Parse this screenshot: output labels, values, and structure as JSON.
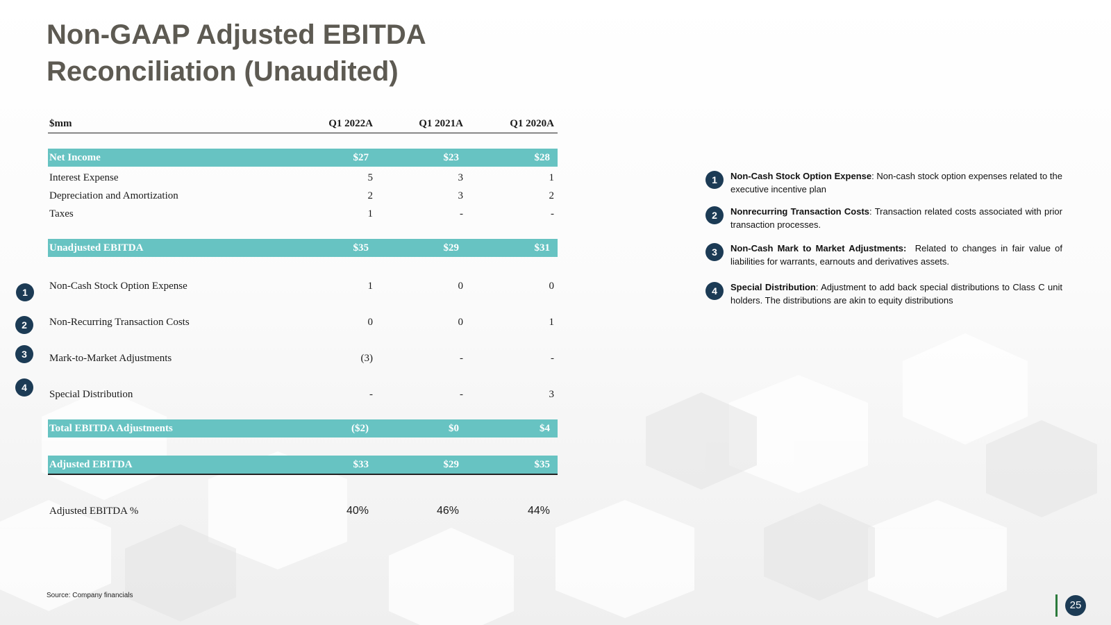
{
  "title": "Non-GAAP Adjusted EBITDA Reconciliation (Unaudited)",
  "table": {
    "header": {
      "label": "$mm",
      "cols": [
        "Q1 2022A",
        "Q1 2021A",
        "Q1 2020A"
      ]
    },
    "rows": [
      {
        "label": "Net Income",
        "v": [
          "$27",
          "$23",
          "$28"
        ]
      },
      {
        "label": "Interest Expense",
        "v": [
          "5",
          "3",
          "1"
        ]
      },
      {
        "label": "Depreciation and Amortization",
        "v": [
          "2",
          "3",
          "2"
        ]
      },
      {
        "label": "Taxes",
        "v": [
          "1",
          "-",
          "-"
        ]
      },
      {
        "label": "Unadjusted EBITDA",
        "v": [
          "$35",
          "$29",
          "$31"
        ]
      },
      {
        "label": "Non-Cash Stock Option Expense",
        "v": [
          "1",
          "0",
          "0"
        ]
      },
      {
        "label": "Non-Recurring Transaction Costs",
        "v": [
          "0",
          "0",
          "1"
        ]
      },
      {
        "label": "Mark-to-Market Adjustments",
        "v": [
          "(3)",
          "-",
          "-"
        ]
      },
      {
        "label": "Special Distribution",
        "v": [
          "-",
          "-",
          "3"
        ]
      },
      {
        "label": "Total EBITDA Adjustments",
        "v": [
          "($2)",
          "$0",
          "$4"
        ]
      },
      {
        "label": "Adjusted EBITDA",
        "v": [
          "$33",
          "$29",
          "$35"
        ]
      },
      {
        "label": "Adjusted EBITDA %",
        "v": [
          "40%",
          "46%",
          "44%"
        ]
      }
    ]
  },
  "badges": [
    "1",
    "2",
    "3",
    "4"
  ],
  "notes": [
    {
      "num": "1",
      "bold": "Non-Cash Stock Option Expense",
      "text": ": Non-cash stock option expenses related to the executive incentive plan"
    },
    {
      "num": "2",
      "bold": "Nonrecurring Transaction Costs",
      "text": ": Transaction related costs associated with prior transaction processes."
    },
    {
      "num": "3",
      "bold": "Non-Cash Mark to Market Adjustments:",
      "text": "  Related to changes in fair value of liabilities for warrants, earnouts and derivatives assets."
    },
    {
      "num": "4",
      "bold": "Special Distribution",
      "text": ": Adjustment to add back special distributions to Class C unit holders. The distributions are akin to equity distributions"
    }
  ],
  "source": "Source: Company financials",
  "page_number": "25",
  "colors": {
    "band": "#67c3c2",
    "badge": "#1c3b55",
    "title": "#5d5a52",
    "page_bar": "#2c7a3c"
  }
}
